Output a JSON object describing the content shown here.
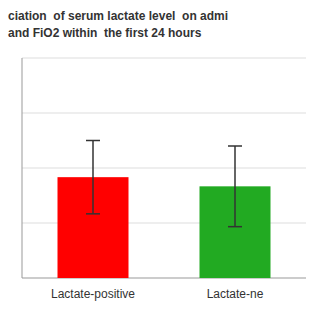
{
  "chart_data": {
    "type": "bar",
    "title": "ciation  of serum lactate level  on admi\nand FiO2 within  the first 24 hours",
    "categories": [
      "Lactate-positive",
      "Lactate-ne"
    ],
    "values": [
      55,
      50
    ],
    "errors": [
      20,
      22
    ],
    "colors": [
      "#ff0000",
      "#22aa22"
    ],
    "ylim": [
      0,
      120
    ],
    "yticks": [
      30,
      60,
      90,
      120
    ],
    "grid": true,
    "tick_labels": "x"
  }
}
